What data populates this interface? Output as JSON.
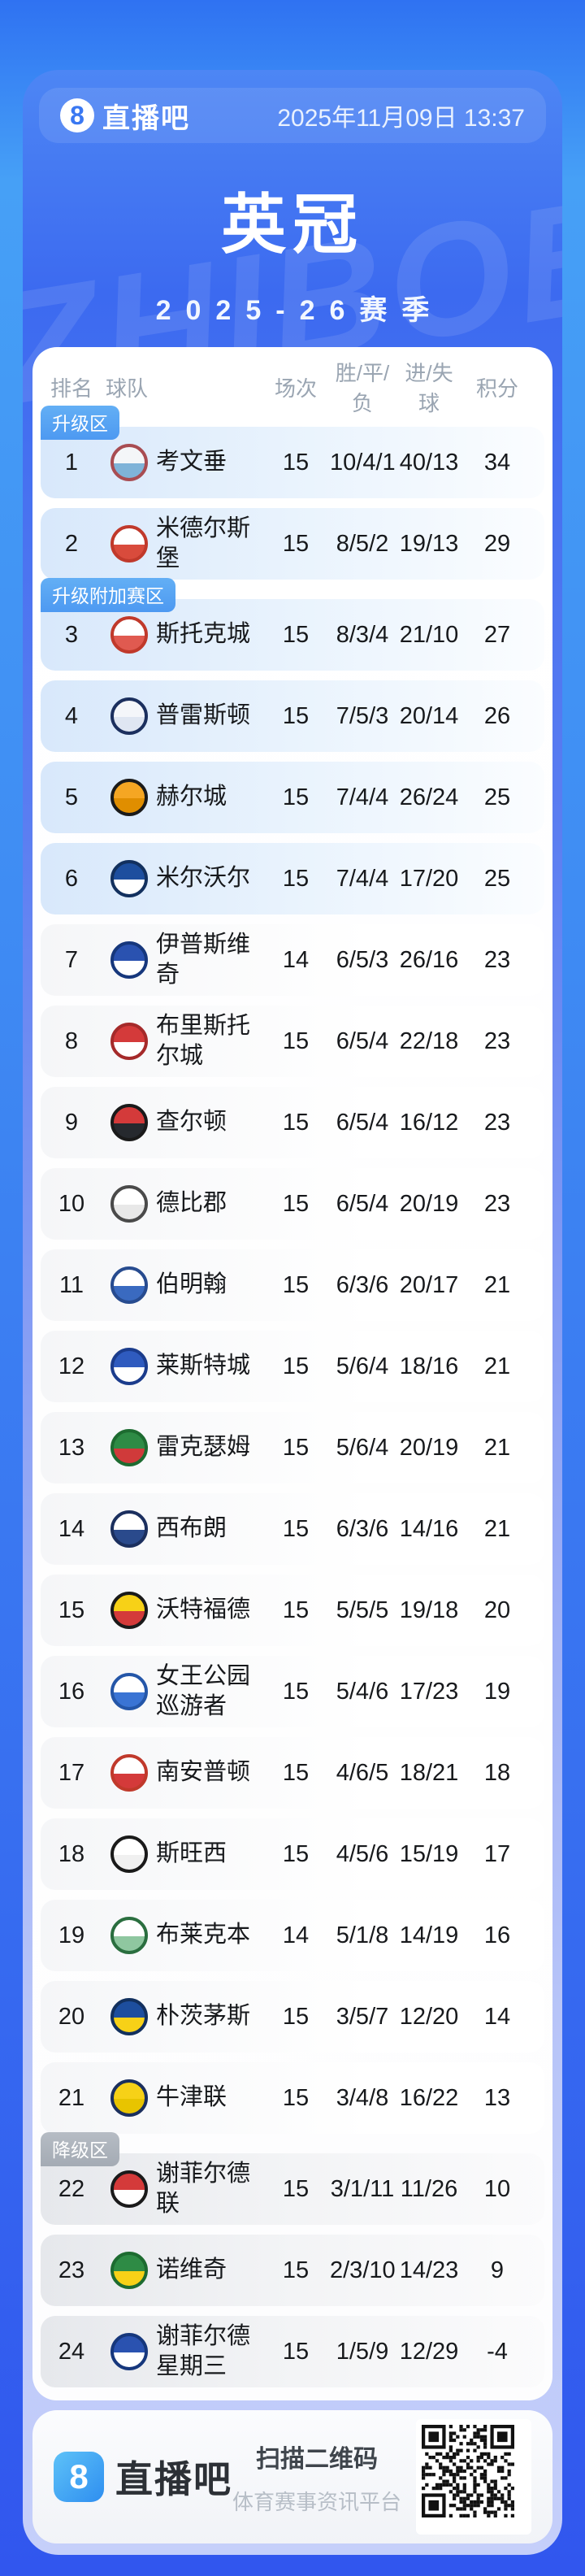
{
  "header": {
    "brand_glyph": "8",
    "brand_name": "直播吧",
    "datetime": "2025年11月09日 13:37",
    "title": "英冠",
    "season": "2025-26赛季",
    "watermark": "ZHIBOBA"
  },
  "table": {
    "columns": [
      "排名",
      "球队",
      "场次",
      "胜/平/负",
      "进/失球",
      "积分"
    ],
    "zone_badge_colors": {
      "promotion": "#55a4f2",
      "relegation": "#aeb4bc"
    },
    "zone_tint_colors": {
      "blue": "#d8e8fb",
      "gray": "#e6e8ec",
      "none": "#f6f7f9"
    }
  },
  "teams": [
    {
      "rank": "1",
      "name": "考文垂",
      "played": "15",
      "wdl": "10/4/1",
      "goals": "40/13",
      "points": "34",
      "zone_badge": "升级区",
      "zone_type": "promotion",
      "tint": "blue",
      "logo_colors": [
        "#a84c52",
        "#f4f6f8",
        "#7fb3d8"
      ]
    },
    {
      "rank": "2",
      "name": "米德尔斯堡",
      "played": "15",
      "wdl": "8/5/2",
      "goals": "19/13",
      "points": "29",
      "zone_badge": "",
      "zone_type": "",
      "tint": "blue",
      "logo_colors": [
        "#c0392b",
        "#ffffff",
        "#d94b3c"
      ]
    },
    {
      "rank": "3",
      "name": "斯托克城",
      "played": "15",
      "wdl": "8/3/4",
      "goals": "21/10",
      "points": "27",
      "zone_badge": "升级附加赛区",
      "zone_type": "promotion",
      "tint": "blue",
      "logo_colors": [
        "#c0392b",
        "#ffffff",
        "#e05a50"
      ]
    },
    {
      "rank": "4",
      "name": "普雷斯顿",
      "played": "15",
      "wdl": "7/5/3",
      "goals": "20/14",
      "points": "26",
      "zone_badge": "",
      "zone_type": "",
      "tint": "blue",
      "logo_colors": [
        "#1b2f5e",
        "#f4f6fa",
        "#dfe6f2"
      ]
    },
    {
      "rank": "5",
      "name": "赫尔城",
      "played": "15",
      "wdl": "7/4/4",
      "goals": "26/24",
      "points": "25",
      "zone_badge": "",
      "zone_type": "",
      "tint": "blue",
      "logo_colors": [
        "#1a1a1a",
        "#f5a623",
        "#e08e00"
      ]
    },
    {
      "rank": "6",
      "name": "米尔沃尔",
      "played": "15",
      "wdl": "7/4/4",
      "goals": "17/20",
      "points": "25",
      "zone_badge": "",
      "zone_type": "",
      "tint": "blue",
      "logo_colors": [
        "#12305e",
        "#1d4e9e",
        "#ffffff"
      ]
    },
    {
      "rank": "7",
      "name": "伊普斯维奇",
      "played": "14",
      "wdl": "6/5/3",
      "goals": "26/16",
      "points": "23",
      "zone_badge": "",
      "zone_type": "",
      "tint": "none",
      "logo_colors": [
        "#16377c",
        "#2a52b0",
        "#ffffff"
      ]
    },
    {
      "rank": "8",
      "name": "布里斯托尔城",
      "played": "15",
      "wdl": "6/5/4",
      "goals": "22/18",
      "points": "23",
      "zone_badge": "",
      "zone_type": "",
      "tint": "none",
      "logo_colors": [
        "#a52a2a",
        "#d43a3a",
        "#ffffff"
      ]
    },
    {
      "rank": "9",
      "name": "查尔顿",
      "played": "15",
      "wdl": "6/5/4",
      "goals": "16/12",
      "points": "23",
      "zone_badge": "",
      "zone_type": "",
      "tint": "none",
      "logo_colors": [
        "#1a1a1a",
        "#d43a3a",
        "#26292e"
      ]
    },
    {
      "rank": "10",
      "name": "德比郡",
      "played": "15",
      "wdl": "6/5/4",
      "goals": "20/19",
      "points": "23",
      "zone_badge": "",
      "zone_type": "",
      "tint": "none",
      "logo_colors": [
        "#4a4a4a",
        "#ffffff",
        "#e8e8e8"
      ]
    },
    {
      "rank": "11",
      "name": "伯明翰",
      "played": "15",
      "wdl": "6/3/6",
      "goals": "20/17",
      "points": "21",
      "zone_badge": "",
      "zone_type": "",
      "tint": "none",
      "logo_colors": [
        "#274b8f",
        "#ffffff",
        "#3a6ac0"
      ]
    },
    {
      "rank": "12",
      "name": "莱斯特城",
      "played": "15",
      "wdl": "5/6/4",
      "goals": "18/16",
      "points": "21",
      "zone_badge": "",
      "zone_type": "",
      "tint": "none",
      "logo_colors": [
        "#1b3c8c",
        "#2f5bbf",
        "#ffffff"
      ]
    },
    {
      "rank": "13",
      "name": "雷克瑟姆",
      "played": "15",
      "wdl": "5/6/4",
      "goals": "20/19",
      "points": "21",
      "zone_badge": "",
      "zone_type": "",
      "tint": "none",
      "logo_colors": [
        "#1d6b30",
        "#2e8b45",
        "#d03a3a"
      ]
    },
    {
      "rank": "14",
      "name": "西布朗",
      "played": "15",
      "wdl": "6/3/6",
      "goals": "14/16",
      "points": "21",
      "zone_badge": "",
      "zone_type": "",
      "tint": "none",
      "logo_colors": [
        "#1b2f5e",
        "#ffffff",
        "#2a4a8c"
      ]
    },
    {
      "rank": "15",
      "name": "沃特福德",
      "played": "15",
      "wdl": "5/5/5",
      "goals": "19/18",
      "points": "20",
      "zone_badge": "",
      "zone_type": "",
      "tint": "none",
      "logo_colors": [
        "#1a1a1a",
        "#f7d117",
        "#d43a3a"
      ]
    },
    {
      "rank": "16",
      "name": "女王公园巡游者",
      "played": "15",
      "wdl": "5/4/6",
      "goals": "17/23",
      "points": "19",
      "zone_badge": "",
      "zone_type": "",
      "tint": "none",
      "logo_colors": [
        "#2456a8",
        "#ffffff",
        "#3a74d4"
      ]
    },
    {
      "rank": "17",
      "name": "南安普顿",
      "played": "15",
      "wdl": "4/6/5",
      "goals": "18/21",
      "points": "18",
      "zone_badge": "",
      "zone_type": "",
      "tint": "none",
      "logo_colors": [
        "#c0392b",
        "#ffffff",
        "#d43a3a"
      ]
    },
    {
      "rank": "18",
      "name": "斯旺西",
      "played": "15",
      "wdl": "4/5/6",
      "goals": "15/19",
      "points": "17",
      "zone_badge": "",
      "zone_type": "",
      "tint": "none",
      "logo_colors": [
        "#1a1a1a",
        "#ffffff",
        "#f0f0f0"
      ]
    },
    {
      "rank": "19",
      "name": "布莱克本",
      "played": "14",
      "wdl": "5/1/8",
      "goals": "14/19",
      "points": "16",
      "zone_badge": "",
      "zone_type": "",
      "tint": "none",
      "logo_colors": [
        "#2a6e3f",
        "#ffffff",
        "#8fc7a0"
      ]
    },
    {
      "rank": "20",
      "name": "朴茨茅斯",
      "played": "15",
      "wdl": "3/5/7",
      "goals": "12/20",
      "points": "14",
      "zone_badge": "",
      "zone_type": "",
      "tint": "none",
      "logo_colors": [
        "#12305e",
        "#1d4e9e",
        "#f7d117"
      ]
    },
    {
      "rank": "21",
      "name": "牛津联",
      "played": "15",
      "wdl": "3/4/8",
      "goals": "16/22",
      "points": "13",
      "zone_badge": "",
      "zone_type": "",
      "tint": "none",
      "logo_colors": [
        "#1b2f5e",
        "#f7d117",
        "#e8c400"
      ]
    },
    {
      "rank": "22",
      "name": "谢菲尔德联",
      "played": "15",
      "wdl": "3/1/11",
      "goals": "11/26",
      "points": "10",
      "zone_badge": "降级区",
      "zone_type": "relegation",
      "tint": "gray",
      "logo_colors": [
        "#1a1a1a",
        "#d43a3a",
        "#ffffff"
      ]
    },
    {
      "rank": "23",
      "name": "诺维奇",
      "played": "15",
      "wdl": "2/3/10",
      "goals": "14/23",
      "points": "9",
      "zone_badge": "",
      "zone_type": "",
      "tint": "gray",
      "logo_colors": [
        "#1d6b30",
        "#2e8b45",
        "#f7d117"
      ]
    },
    {
      "rank": "24",
      "name": "谢菲尔德星期三",
      "played": "15",
      "wdl": "1/5/9",
      "goals": "12/29",
      "points": "-4",
      "zone_badge": "",
      "zone_type": "",
      "tint": "gray",
      "logo_colors": [
        "#16377c",
        "#2a52b0",
        "#ffffff"
      ]
    }
  ],
  "footer": {
    "brand_glyph": "8",
    "brand_name": "直播吧",
    "qr_title": "扫描二维码",
    "qr_subtitle": "体育赛事资讯平台"
  }
}
